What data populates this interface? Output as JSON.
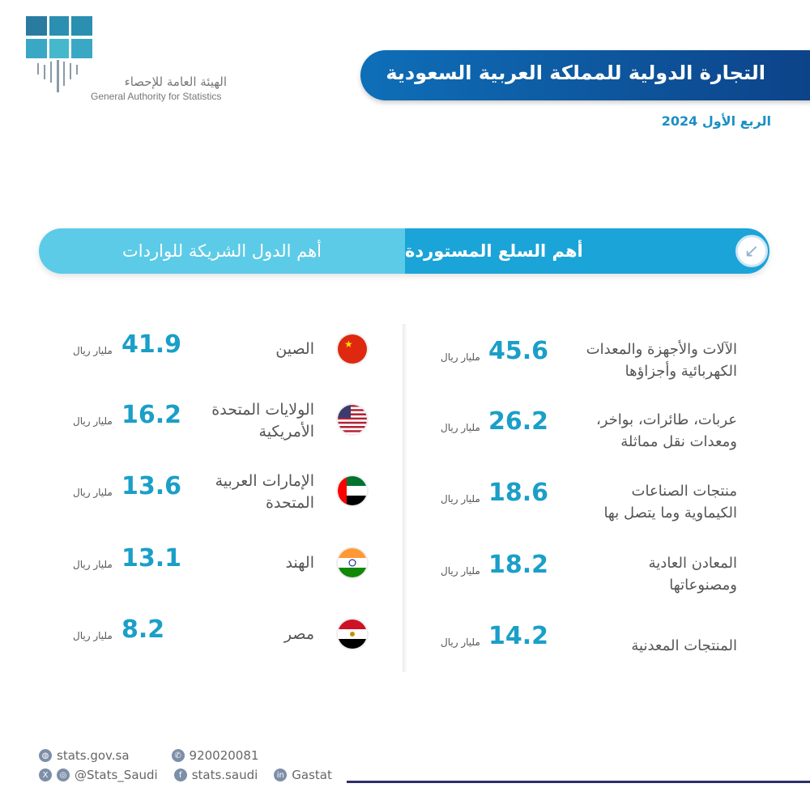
{
  "logo": {
    "ar": "الهيئة العامة للإحصاء",
    "en": "General Authority for Statistics",
    "mark": "W&S SA"
  },
  "header": {
    "title": "التجارة الدولية للمملكة العربية السعودية",
    "period": "الربع الأول 2024"
  },
  "sections": {
    "goods_title": "أهم السلع المستوردة",
    "countries_title": "أهم الدول الشريكة للواردات",
    "goods_icon": "arrow-down-left-icon"
  },
  "unit": "مليار ريال",
  "goods": [
    {
      "l1": "الآلات والأجهزة والمعدات",
      "l2": "الكهربائية وأجزاؤها",
      "value": "45.6"
    },
    {
      "l1": "عربات، طائرات، بواخر،",
      "l2": "ومعدات نقل مماثلة",
      "value": "26.2"
    },
    {
      "l1": "منتجات الصناعات",
      "l2": "الكيماوية وما يتصل بها",
      "value": "18.6"
    },
    {
      "l1": "المعادن العادية",
      "l2": "ومصنوعاتها",
      "value": "18.2"
    },
    {
      "l1": "المنتجات المعدنية",
      "l2": "",
      "value": "14.2"
    }
  ],
  "countries": [
    {
      "l1": "الصين",
      "l2": "",
      "value": "41.9"
    },
    {
      "l1": "الولايات المتحدة",
      "l2": "الأمريكية",
      "value": "16.2"
    },
    {
      "l1": "الإمارات العربية",
      "l2": "المتحدة",
      "value": "13.6"
    },
    {
      "l1": "الهند",
      "l2": "",
      "value": "13.1"
    },
    {
      "l1": "مصر",
      "l2": "",
      "value": "8.2"
    }
  ],
  "footer": {
    "website": "stats.gov.sa",
    "phone": "920020081",
    "social": "@Stats_Saudi",
    "facebook": "stats.saudi",
    "linkedin": "Gastat"
  }
}
